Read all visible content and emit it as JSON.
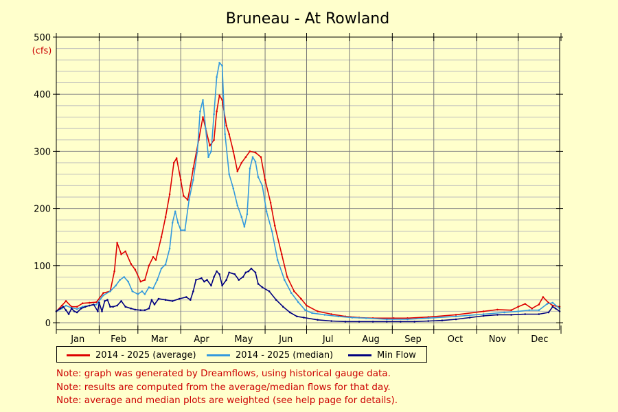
{
  "chart_data": {
    "type": "line",
    "title": "Bruneau - At Rowland",
    "ylabel": "(cfs)",
    "ylim": [
      0,
      500
    ],
    "yticks": [
      0,
      100,
      200,
      300,
      400,
      500
    ],
    "xlim": [
      1,
      365
    ],
    "month_labels": [
      "Jan",
      "Feb",
      "Mar",
      "Apr",
      "May",
      "Jun",
      "Jul",
      "Aug",
      "Sep",
      "Oct",
      "Nov",
      "Dec"
    ],
    "x_unit": "day of year",
    "grid": true,
    "legend_position": "bottom-left",
    "series": [
      {
        "name": "2014 - 2025 (average)",
        "color": "#dd0000",
        "points": [
          [
            1,
            20
          ],
          [
            5,
            30
          ],
          [
            8,
            38
          ],
          [
            12,
            28
          ],
          [
            16,
            28
          ],
          [
            20,
            34
          ],
          [
            25,
            35
          ],
          [
            30,
            36
          ],
          [
            35,
            52
          ],
          [
            40,
            55
          ],
          [
            43,
            90
          ],
          [
            45,
            140
          ],
          [
            48,
            120
          ],
          [
            51,
            125
          ],
          [
            55,
            103
          ],
          [
            58,
            93
          ],
          [
            62,
            72
          ],
          [
            65,
            75
          ],
          [
            68,
            100
          ],
          [
            71,
            115
          ],
          [
            73,
            110
          ],
          [
            77,
            150
          ],
          [
            80,
            185
          ],
          [
            83,
            225
          ],
          [
            86,
            280
          ],
          [
            88,
            288
          ],
          [
            91,
            250
          ],
          [
            93,
            222
          ],
          [
            96,
            215
          ],
          [
            98,
            240
          ],
          [
            100,
            270
          ],
          [
            104,
            320
          ],
          [
            107,
            360
          ],
          [
            109,
            340
          ],
          [
            112,
            310
          ],
          [
            115,
            320
          ],
          [
            117,
            370
          ],
          [
            119,
            398
          ],
          [
            121,
            390
          ],
          [
            124,
            345
          ],
          [
            126,
            330
          ],
          [
            129,
            300
          ],
          [
            132,
            265
          ],
          [
            135,
            280
          ],
          [
            138,
            290
          ],
          [
            141,
            300
          ],
          [
            145,
            298
          ],
          [
            149,
            290
          ],
          [
            152,
            250
          ],
          [
            156,
            210
          ],
          [
            159,
            170
          ],
          [
            164,
            120
          ],
          [
            168,
            80
          ],
          [
            173,
            55
          ],
          [
            178,
            42
          ],
          [
            182,
            30
          ],
          [
            190,
            20
          ],
          [
            200,
            15
          ],
          [
            210,
            11
          ],
          [
            220,
            9
          ],
          [
            230,
            8
          ],
          [
            245,
            8
          ],
          [
            255,
            8
          ],
          [
            270,
            10
          ],
          [
            290,
            14
          ],
          [
            310,
            20
          ],
          [
            320,
            23
          ],
          [
            330,
            22
          ],
          [
            335,
            28
          ],
          [
            340,
            33
          ],
          [
            345,
            25
          ],
          [
            350,
            32
          ],
          [
            353,
            45
          ],
          [
            357,
            35
          ],
          [
            360,
            30
          ],
          [
            365,
            28
          ]
        ]
      },
      {
        "name": "2014 - 2025 (median)",
        "color": "#3399dd",
        "points": [
          [
            1,
            20
          ],
          [
            5,
            25
          ],
          [
            8,
            30
          ],
          [
            12,
            26
          ],
          [
            16,
            24
          ],
          [
            20,
            28
          ],
          [
            25,
            30
          ],
          [
            30,
            32
          ],
          [
            35,
            48
          ],
          [
            40,
            55
          ],
          [
            44,
            65
          ],
          [
            47,
            75
          ],
          [
            50,
            80
          ],
          [
            53,
            72
          ],
          [
            56,
            55
          ],
          [
            60,
            50
          ],
          [
            63,
            55
          ],
          [
            65,
            50
          ],
          [
            68,
            62
          ],
          [
            71,
            60
          ],
          [
            74,
            75
          ],
          [
            77,
            95
          ],
          [
            80,
            102
          ],
          [
            83,
            130
          ],
          [
            85,
            175
          ],
          [
            87,
            195
          ],
          [
            89,
            175
          ],
          [
            91,
            162
          ],
          [
            94,
            162
          ],
          [
            97,
            215
          ],
          [
            100,
            250
          ],
          [
            103,
            300
          ],
          [
            105,
            370
          ],
          [
            107,
            390
          ],
          [
            109,
            340
          ],
          [
            111,
            290
          ],
          [
            113,
            300
          ],
          [
            115,
            365
          ],
          [
            117,
            430
          ],
          [
            119,
            455
          ],
          [
            121,
            450
          ],
          [
            123,
            330
          ],
          [
            126,
            260
          ],
          [
            129,
            235
          ],
          [
            132,
            205
          ],
          [
            135,
            185
          ],
          [
            137,
            168
          ],
          [
            139,
            190
          ],
          [
            141,
            270
          ],
          [
            143,
            290
          ],
          [
            145,
            282
          ],
          [
            147,
            255
          ],
          [
            150,
            240
          ],
          [
            153,
            195
          ],
          [
            157,
            160
          ],
          [
            161,
            110
          ],
          [
            166,
            75
          ],
          [
            171,
            52
          ],
          [
            176,
            36
          ],
          [
            181,
            22
          ],
          [
            186,
            17
          ],
          [
            195,
            14
          ],
          [
            205,
            11
          ],
          [
            215,
            9
          ],
          [
            225,
            8
          ],
          [
            240,
            6
          ],
          [
            255,
            6
          ],
          [
            270,
            8
          ],
          [
            290,
            11
          ],
          [
            310,
            15
          ],
          [
            325,
            18
          ],
          [
            335,
            20
          ],
          [
            343,
            22
          ],
          [
            350,
            22
          ],
          [
            356,
            33
          ],
          [
            360,
            35
          ],
          [
            365,
            25
          ]
        ]
      },
      {
        "name": "Min Flow",
        "color": "#000080",
        "points": [
          [
            1,
            20
          ],
          [
            4,
            25
          ],
          [
            6,
            28
          ],
          [
            8,
            22
          ],
          [
            10,
            15
          ],
          [
            12,
            25
          ],
          [
            14,
            20
          ],
          [
            16,
            18
          ],
          [
            19,
            25
          ],
          [
            22,
            28
          ],
          [
            25,
            30
          ],
          [
            28,
            32
          ],
          [
            31,
            20
          ],
          [
            32,
            35
          ],
          [
            34,
            20
          ],
          [
            36,
            38
          ],
          [
            38,
            40
          ],
          [
            40,
            28
          ],
          [
            42,
            28
          ],
          [
            45,
            30
          ],
          [
            48,
            38
          ],
          [
            51,
            28
          ],
          [
            55,
            25
          ],
          [
            58,
            23
          ],
          [
            62,
            22
          ],
          [
            65,
            22
          ],
          [
            68,
            25
          ],
          [
            70,
            40
          ],
          [
            72,
            32
          ],
          [
            75,
            42
          ],
          [
            80,
            40
          ],
          [
            85,
            38
          ],
          [
            90,
            42
          ],
          [
            95,
            45
          ],
          [
            98,
            40
          ],
          [
            100,
            55
          ],
          [
            102,
            75
          ],
          [
            106,
            78
          ],
          [
            108,
            72
          ],
          [
            110,
            75
          ],
          [
            113,
            65
          ],
          [
            115,
            80
          ],
          [
            117,
            90
          ],
          [
            119,
            85
          ],
          [
            121,
            65
          ],
          [
            124,
            75
          ],
          [
            126,
            88
          ],
          [
            130,
            85
          ],
          [
            133,
            75
          ],
          [
            136,
            80
          ],
          [
            138,
            88
          ],
          [
            140,
            90
          ],
          [
            142,
            95
          ],
          [
            145,
            88
          ],
          [
            147,
            68
          ],
          [
            150,
            62
          ],
          [
            155,
            55
          ],
          [
            160,
            40
          ],
          [
            165,
            28
          ],
          [
            170,
            18
          ],
          [
            175,
            11
          ],
          [
            180,
            9
          ],
          [
            190,
            5
          ],
          [
            200,
            3
          ],
          [
            210,
            2
          ],
          [
            220,
            2
          ],
          [
            230,
            2
          ],
          [
            240,
            2
          ],
          [
            250,
            2
          ],
          [
            260,
            2
          ],
          [
            270,
            3
          ],
          [
            280,
            4
          ],
          [
            290,
            6
          ],
          [
            300,
            9
          ],
          [
            310,
            12
          ],
          [
            320,
            14
          ],
          [
            330,
            14
          ],
          [
            340,
            15
          ],
          [
            350,
            15
          ],
          [
            357,
            18
          ],
          [
            360,
            28
          ],
          [
            362,
            25
          ],
          [
            365,
            20
          ]
        ]
      }
    ],
    "notes": [
      "Note: graph was generated by Dreamflows, using historical gauge data.",
      "Note: results are computed from the average/median flows for that day.",
      "Note: average and median plots are weighted (see help page for details)."
    ]
  }
}
